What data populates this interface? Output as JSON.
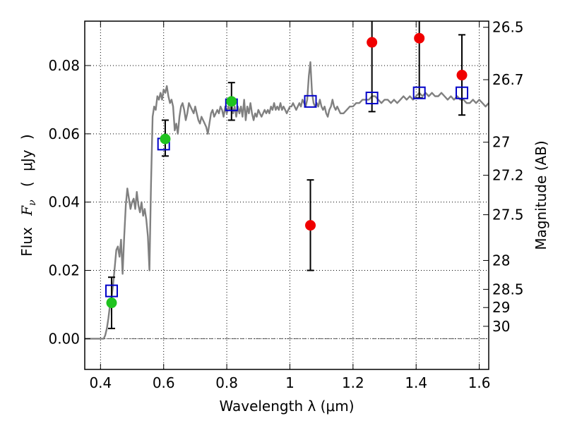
{
  "chart_data": {
    "type": "scatter",
    "title": "",
    "xlabel": "Wavelength  λ (μm)",
    "ylabel_parts": [
      "Flux",
      "F",
      "ν",
      "(",
      "μJy",
      ")"
    ],
    "ylabel_right": "Magnitude (AB)",
    "xlim": [
      0.35,
      1.63
    ],
    "ylim": [
      -0.009,
      0.093
    ],
    "grid": true,
    "x_ticks": [
      0.4,
      0.6,
      0.8,
      1.0,
      1.2,
      1.4,
      1.6
    ],
    "x_tick_labels": [
      "0.4",
      "0.6",
      "0.8",
      "1",
      "1.2",
      "1.4",
      "1.6"
    ],
    "y_ticks": [
      0.0,
      0.02,
      0.04,
      0.06,
      0.08
    ],
    "y_tick_labels": [
      "0.00",
      "0.02",
      "0.04",
      "0.06",
      "0.08"
    ],
    "right_ticks": [
      {
        "label": "26.5",
        "mag": 26.5
      },
      {
        "label": "26.7",
        "mag": 26.7
      },
      {
        "label": "27",
        "mag": 27.0
      },
      {
        "label": "27.2",
        "mag": 27.2
      },
      {
        "label": "27.5",
        "mag": 27.5
      },
      {
        "label": "28",
        "mag": 28.0
      },
      {
        "label": "28.5",
        "mag": 28.5
      },
      {
        "label": "29",
        "mag": 29.0
      },
      {
        "label": "30",
        "mag": 30.0
      }
    ],
    "colors": {
      "model": "#808080",
      "model_points": "#0000c8",
      "detected": "#1fc31f",
      "other": "#f00000",
      "errorbar": "#000000",
      "zero_line": "#555555"
    },
    "model_spectrum": [
      [
        0.35,
        0.0
      ],
      [
        0.41,
        0.0
      ],
      [
        0.415,
        0.001
      ],
      [
        0.42,
        0.003
      ],
      [
        0.425,
        0.006
      ],
      [
        0.43,
        0.01
      ],
      [
        0.435,
        0.012
      ],
      [
        0.44,
        0.016
      ],
      [
        0.445,
        0.021
      ],
      [
        0.45,
        0.026
      ],
      [
        0.455,
        0.027
      ],
      [
        0.46,
        0.024
      ],
      [
        0.465,
        0.029
      ],
      [
        0.47,
        0.019
      ],
      [
        0.475,
        0.03
      ],
      [
        0.48,
        0.039
      ],
      [
        0.485,
        0.044
      ],
      [
        0.49,
        0.041
      ],
      [
        0.495,
        0.038
      ],
      [
        0.5,
        0.04
      ],
      [
        0.505,
        0.041
      ],
      [
        0.51,
        0.038
      ],
      [
        0.515,
        0.043
      ],
      [
        0.52,
        0.039
      ],
      [
        0.525,
        0.037
      ],
      [
        0.53,
        0.04
      ],
      [
        0.535,
        0.036
      ],
      [
        0.54,
        0.038
      ],
      [
        0.545,
        0.035
      ],
      [
        0.55,
        0.03
      ],
      [
        0.555,
        0.02
      ],
      [
        0.56,
        0.045
      ],
      [
        0.565,
        0.065
      ],
      [
        0.57,
        0.068
      ],
      [
        0.575,
        0.067
      ],
      [
        0.58,
        0.071
      ],
      [
        0.585,
        0.07
      ],
      [
        0.59,
        0.072
      ],
      [
        0.595,
        0.07
      ],
      [
        0.6,
        0.073
      ],
      [
        0.605,
        0.072
      ],
      [
        0.61,
        0.074
      ],
      [
        0.615,
        0.071
      ],
      [
        0.62,
        0.069
      ],
      [
        0.625,
        0.07
      ],
      [
        0.63,
        0.068
      ],
      [
        0.635,
        0.061
      ],
      [
        0.64,
        0.063
      ],
      [
        0.645,
        0.06
      ],
      [
        0.65,
        0.065
      ],
      [
        0.655,
        0.068
      ],
      [
        0.66,
        0.069
      ],
      [
        0.665,
        0.067
      ],
      [
        0.67,
        0.064
      ],
      [
        0.675,
        0.066
      ],
      [
        0.68,
        0.069
      ],
      [
        0.685,
        0.068
      ],
      [
        0.69,
        0.067
      ],
      [
        0.695,
        0.066
      ],
      [
        0.7,
        0.068
      ],
      [
        0.705,
        0.066
      ],
      [
        0.71,
        0.064
      ],
      [
        0.715,
        0.063
      ],
      [
        0.72,
        0.065
      ],
      [
        0.725,
        0.064
      ],
      [
        0.73,
        0.063
      ],
      [
        0.735,
        0.062
      ],
      [
        0.74,
        0.06
      ],
      [
        0.745,
        0.063
      ],
      [
        0.75,
        0.066
      ],
      [
        0.755,
        0.067
      ],
      [
        0.76,
        0.065
      ],
      [
        0.765,
        0.066
      ],
      [
        0.77,
        0.067
      ],
      [
        0.775,
        0.066
      ],
      [
        0.78,
        0.068
      ],
      [
        0.785,
        0.067
      ],
      [
        0.79,
        0.065
      ],
      [
        0.795,
        0.068
      ],
      [
        0.8,
        0.066
      ],
      [
        0.805,
        0.068
      ],
      [
        0.81,
        0.067
      ],
      [
        0.815,
        0.069
      ],
      [
        0.82,
        0.066
      ],
      [
        0.825,
        0.068
      ],
      [
        0.83,
        0.065
      ],
      [
        0.835,
        0.068
      ],
      [
        0.84,
        0.066
      ],
      [
        0.845,
        0.068
      ],
      [
        0.85,
        0.065
      ],
      [
        0.855,
        0.07
      ],
      [
        0.86,
        0.064
      ],
      [
        0.865,
        0.068
      ],
      [
        0.87,
        0.066
      ],
      [
        0.875,
        0.069
      ],
      [
        0.88,
        0.066
      ],
      [
        0.885,
        0.064
      ],
      [
        0.89,
        0.066
      ],
      [
        0.895,
        0.065
      ],
      [
        0.9,
        0.067
      ],
      [
        0.905,
        0.066
      ],
      [
        0.91,
        0.065
      ],
      [
        0.915,
        0.066
      ],
      [
        0.92,
        0.067
      ],
      [
        0.925,
        0.066
      ],
      [
        0.93,
        0.067
      ],
      [
        0.935,
        0.066
      ],
      [
        0.94,
        0.068
      ],
      [
        0.945,
        0.067
      ],
      [
        0.95,
        0.069
      ],
      [
        0.955,
        0.067
      ],
      [
        0.96,
        0.068
      ],
      [
        0.965,
        0.067
      ],
      [
        0.97,
        0.069
      ],
      [
        0.975,
        0.067
      ],
      [
        0.98,
        0.068
      ],
      [
        0.985,
        0.067
      ],
      [
        0.99,
        0.066
      ],
      [
        0.995,
        0.067
      ],
      [
        1.0,
        0.068
      ],
      [
        1.005,
        0.068
      ],
      [
        1.01,
        0.069
      ],
      [
        1.015,
        0.068
      ],
      [
        1.02,
        0.067
      ],
      [
        1.025,
        0.068
      ],
      [
        1.03,
        0.069
      ],
      [
        1.035,
        0.068
      ],
      [
        1.04,
        0.07
      ],
      [
        1.045,
        0.069
      ],
      [
        1.05,
        0.068
      ],
      [
        1.055,
        0.07
      ],
      [
        1.06,
        0.077
      ],
      [
        1.065,
        0.081
      ],
      [
        1.07,
        0.072
      ],
      [
        1.075,
        0.069
      ],
      [
        1.08,
        0.068
      ],
      [
        1.085,
        0.069
      ],
      [
        1.09,
        0.068
      ],
      [
        1.095,
        0.07
      ],
      [
        1.1,
        0.068
      ],
      [
        1.105,
        0.067
      ],
      [
        1.11,
        0.068
      ],
      [
        1.115,
        0.066
      ],
      [
        1.12,
        0.065
      ],
      [
        1.125,
        0.067
      ],
      [
        1.13,
        0.068
      ],
      [
        1.135,
        0.07
      ],
      [
        1.14,
        0.068
      ],
      [
        1.145,
        0.067
      ],
      [
        1.15,
        0.068
      ],
      [
        1.155,
        0.067
      ],
      [
        1.16,
        0.066
      ],
      [
        1.17,
        0.066
      ],
      [
        1.18,
        0.067
      ],
      [
        1.19,
        0.068
      ],
      [
        1.2,
        0.068
      ],
      [
        1.21,
        0.069
      ],
      [
        1.22,
        0.069
      ],
      [
        1.23,
        0.07
      ],
      [
        1.24,
        0.07
      ],
      [
        1.25,
        0.07
      ],
      [
        1.26,
        0.071
      ],
      [
        1.27,
        0.071
      ],
      [
        1.28,
        0.07
      ],
      [
        1.29,
        0.069
      ],
      [
        1.3,
        0.07
      ],
      [
        1.31,
        0.07
      ],
      [
        1.32,
        0.069
      ],
      [
        1.33,
        0.07
      ],
      [
        1.34,
        0.069
      ],
      [
        1.35,
        0.07
      ],
      [
        1.36,
        0.071
      ],
      [
        1.37,
        0.07
      ],
      [
        1.38,
        0.071
      ],
      [
        1.39,
        0.07
      ],
      [
        1.4,
        0.071
      ],
      [
        1.41,
        0.072
      ],
      [
        1.42,
        0.071
      ],
      [
        1.43,
        0.072
      ],
      [
        1.44,
        0.071
      ],
      [
        1.45,
        0.072
      ],
      [
        1.46,
        0.071
      ],
      [
        1.47,
        0.071
      ],
      [
        1.48,
        0.072
      ],
      [
        1.49,
        0.071
      ],
      [
        1.5,
        0.07
      ],
      [
        1.51,
        0.071
      ],
      [
        1.52,
        0.07
      ],
      [
        1.53,
        0.071
      ],
      [
        1.54,
        0.07
      ],
      [
        1.55,
        0.07
      ],
      [
        1.56,
        0.069
      ],
      [
        1.57,
        0.069
      ],
      [
        1.58,
        0.07
      ],
      [
        1.59,
        0.069
      ],
      [
        1.6,
        0.07
      ],
      [
        1.61,
        0.069
      ],
      [
        1.62,
        0.068
      ],
      [
        1.63,
        0.069
      ]
    ],
    "model_points": [
      [
        0.435,
        0.014
      ],
      [
        0.6,
        0.057
      ],
      [
        0.815,
        0.0685
      ],
      [
        1.065,
        0.0695
      ],
      [
        1.26,
        0.0705
      ],
      [
        1.41,
        0.072
      ],
      [
        1.545,
        0.072
      ]
    ],
    "observed": [
      {
        "x": 0.435,
        "y": 0.0105,
        "err": [
          0.003,
          0.018
        ],
        "kind": "detected"
      },
      {
        "x": 0.605,
        "y": 0.0585,
        "err": [
          0.0535,
          0.064
        ],
        "kind": "detected"
      },
      {
        "x": 0.815,
        "y": 0.0695,
        "err": [
          0.064,
          0.075
        ],
        "kind": "detected"
      },
      {
        "x": 1.065,
        "y": 0.0332,
        "err": [
          0.02,
          0.0465
        ],
        "kind": "other"
      },
      {
        "x": 1.26,
        "y": 0.0868,
        "err": [
          0.0665,
          0.093
        ],
        "kind": "other"
      },
      {
        "x": 1.41,
        "y": 0.088,
        "err": [
          0.0705,
          0.093
        ],
        "kind": "other"
      },
      {
        "x": 1.545,
        "y": 0.0772,
        "err": [
          0.0655,
          0.089
        ],
        "kind": "other"
      }
    ]
  }
}
